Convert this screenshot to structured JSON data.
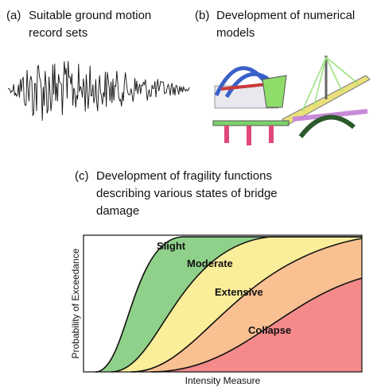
{
  "panels": [
    {
      "label": "(a)",
      "lines": [
        "Suitable ground motion",
        "record sets"
      ]
    },
    {
      "label": "(b)",
      "lines": [
        "Development of numerical",
        "models"
      ]
    },
    {
      "label": "(c)",
      "lines": [
        "Development of fragility functions",
        "describing various states of bridge",
        "damage"
      ]
    }
  ],
  "fragility": {
    "y_label": "Probability of Exceedance",
    "x_label": "Intensity Measure",
    "states": [
      "Slight",
      "Moderate",
      "Extensive",
      "Collapse"
    ]
  }
}
